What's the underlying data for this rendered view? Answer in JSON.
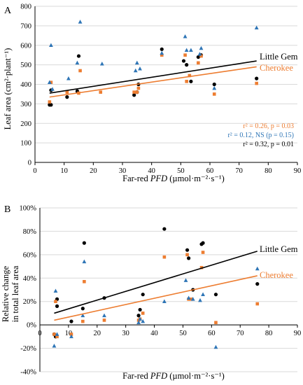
{
  "colors": {
    "little_gem": "#000000",
    "cherokee": "#ED7D31",
    "blue": "#2E75B6",
    "axis": "#000000",
    "grid": "#d9d9d9"
  },
  "chart_data": [
    {
      "panel": "A",
      "type": "scatter",
      "xlabel_pre": "Far-red ",
      "xlabel_italic": "PFD",
      "xlabel_post": " (µmol·m⁻²·s⁻¹)",
      "ylabel": "Leaf area (cm²·plant⁻¹)",
      "xlim": [
        0,
        90
      ],
      "ylim": [
        0,
        800
      ],
      "xticks": [
        "0",
        "10",
        "20",
        "30",
        "40",
        "50",
        "60",
        "70",
        "80",
        "90"
      ],
      "yticks": [
        "0",
        "100",
        "200",
        "300",
        "400",
        "500",
        "600",
        "700",
        "800"
      ],
      "grid": true,
      "legend_labels": {
        "little_gem": "Little Gem",
        "cherokee": "Cherokee"
      },
      "stats": [
        "r² = 0.26, p = 0.03",
        "r² = 0.12, NS (p = 0.15)",
        "r² = 0.32, p = 0.01"
      ],
      "series": [
        {
          "key": "little_gem",
          "marker": "circle",
          "points": [
            [
              5,
              295
            ],
            [
              5.5,
              295
            ],
            [
              5.5,
              370
            ],
            [
              11,
              335
            ],
            [
              14.5,
              365
            ],
            [
              15,
              545
            ],
            [
              34,
              345
            ],
            [
              35,
              360
            ],
            [
              35.5,
              400
            ],
            [
              43.5,
              580
            ],
            [
              51,
              520
            ],
            [
              52,
              500
            ],
            [
              53.5,
              415
            ],
            [
              56,
              540
            ],
            [
              56.5,
              545
            ],
            [
              57,
              550
            ],
            [
              61.5,
              400
            ],
            [
              76,
              430
            ]
          ],
          "trend": [
            [
              5,
              355
            ],
            [
              76,
              520
            ]
          ]
        },
        {
          "key": "cherokee",
          "marker": "square",
          "points": [
            [
              5,
              310
            ],
            [
              5.5,
              410
            ],
            [
              11,
              360
            ],
            [
              15,
              355
            ],
            [
              15.5,
              470
            ],
            [
              22.5,
              360
            ],
            [
              34,
              360
            ],
            [
              35,
              360
            ],
            [
              35.5,
              380
            ],
            [
              43.5,
              550
            ],
            [
              51.5,
              550
            ],
            [
              52,
              415
            ],
            [
              53,
              445
            ],
            [
              56,
              510
            ],
            [
              57,
              545
            ],
            [
              61.5,
              350
            ],
            [
              76,
              405
            ]
          ],
          "trend": [
            [
              5,
              335
            ],
            [
              76,
              490
            ]
          ]
        },
        {
          "key": "blue",
          "marker": "triangle",
          "points": [
            [
              5,
              410
            ],
            [
              5.5,
              600
            ],
            [
              6,
              375
            ],
            [
              11.5,
              430
            ],
            [
              14.5,
              510
            ],
            [
              15.5,
              720
            ],
            [
              23,
              505
            ],
            [
              34.5,
              470
            ],
            [
              35,
              510
            ],
            [
              36,
              480
            ],
            [
              43.5,
              560
            ],
            [
              51.5,
              645
            ],
            [
              52,
              575
            ],
            [
              53.5,
              575
            ],
            [
              56.5,
              555
            ],
            [
              57,
              585
            ],
            [
              61.5,
              380
            ],
            [
              76,
              690
            ]
          ]
        }
      ]
    },
    {
      "panel": "B",
      "type": "scatter",
      "xlabel_pre": "Far-red ",
      "xlabel_italic": "PFD",
      "xlabel_post": " (µmol·m⁻²·s⁻¹)",
      "ylabel_line1": "Relative change",
      "ylabel_line2": "in total leaf area",
      "xlim": [
        0,
        90
      ],
      "ylim": [
        -40,
        100
      ],
      "xticks": [
        "0",
        "10",
        "20",
        "30",
        "40",
        "50",
        "60",
        "70",
        "80",
        "90"
      ],
      "yticks": [
        "-40%",
        "-20%",
        "0%",
        "20%",
        "40%",
        "60%",
        "80%",
        "100%"
      ],
      "grid": true,
      "legend_labels": {
        "little_gem": "Little Gem",
        "cherokee": "Cherokee"
      },
      "series": [
        {
          "key": "little_gem",
          "marker": "circle",
          "points": [
            [
              5,
              -8
            ],
            [
              5.5,
              -10
            ],
            [
              6,
              16
            ],
            [
              6,
              22
            ],
            [
              11,
              3
            ],
            [
              15,
              14
            ],
            [
              15.5,
              70
            ],
            [
              22.5,
              23
            ],
            [
              34.5,
              8
            ],
            [
              35,
              13
            ],
            [
              36,
              26
            ],
            [
              43.5,
              82
            ],
            [
              51.5,
              64
            ],
            [
              52,
              57
            ],
            [
              53.5,
              30
            ],
            [
              56.5,
              69
            ],
            [
              57,
              70
            ],
            [
              61.5,
              26
            ],
            [
              76,
              35
            ]
          ],
          "trend": [
            [
              5,
              10
            ],
            [
              76,
              63
            ]
          ]
        },
        {
          "key": "cherokee",
          "marker": "square",
          "points": [
            [
              5,
              -8
            ],
            [
              5.5,
              20
            ],
            [
              6,
              -10
            ],
            [
              11,
              -8
            ],
            [
              15,
              3
            ],
            [
              15.5,
              37
            ],
            [
              22.5,
              4
            ],
            [
              34.5,
              4
            ],
            [
              35,
              5
            ],
            [
              36,
              10
            ],
            [
              43.5,
              58
            ],
            [
              51.5,
              60
            ],
            [
              52,
              22
            ],
            [
              53,
              22
            ],
            [
              56.5,
              49
            ],
            [
              57,
              62
            ],
            [
              61.5,
              2
            ],
            [
              76,
              18
            ]
          ],
          "trend": [
            [
              5,
              4
            ],
            [
              76,
              42
            ]
          ]
        },
        {
          "key": "blue",
          "marker": "triangle",
          "points": [
            [
              5,
              -18
            ],
            [
              5.5,
              29
            ],
            [
              6,
              -8
            ],
            [
              11,
              -10
            ],
            [
              15,
              8
            ],
            [
              15.5,
              54
            ],
            [
              22.5,
              8
            ],
            [
              34.5,
              2
            ],
            [
              35,
              5
            ],
            [
              36,
              3
            ],
            [
              43.5,
              20
            ],
            [
              51,
              38
            ],
            [
              52,
              23
            ],
            [
              53.5,
              22
            ],
            [
              56,
              21
            ],
            [
              57,
              26
            ],
            [
              61.5,
              -19
            ],
            [
              76,
              48
            ]
          ]
        }
      ]
    }
  ]
}
